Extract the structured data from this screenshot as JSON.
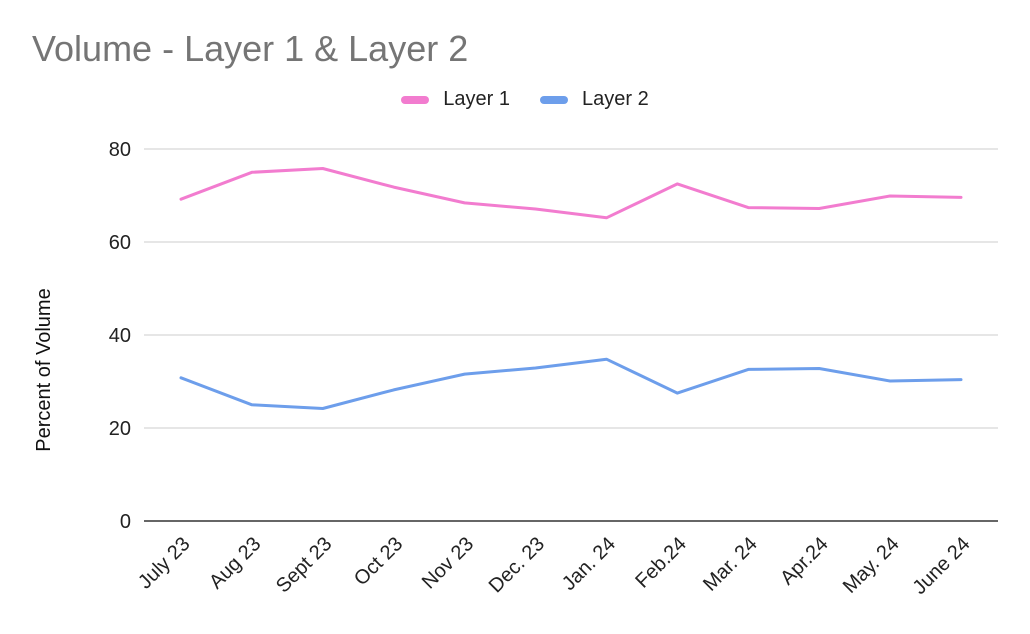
{
  "chart_data": {
    "type": "line",
    "title": "Volume - Layer 1 & Layer 2",
    "xlabel": "",
    "ylabel": "Percent of Volume",
    "ylim": [
      0,
      80
    ],
    "yticks": [
      0,
      20,
      40,
      60,
      80
    ],
    "grid": true,
    "legend_position": "top",
    "categories": [
      "July 23",
      "Aug 23",
      "Sept 23",
      "Oct 23",
      "Nov 23",
      "Dec. 23",
      "Jan. 24",
      "Feb.24",
      "Mar. 24",
      "Apr.24",
      "May. 24",
      "June 24"
    ],
    "series": [
      {
        "name": "Layer 1",
        "color": "#f27ccf",
        "values": [
          69.2,
          75.0,
          75.8,
          71.8,
          68.4,
          67.1,
          65.2,
          72.5,
          67.4,
          67.2,
          69.9,
          69.6
        ]
      },
      {
        "name": "Layer 2",
        "color": "#6d9eeb",
        "values": [
          30.8,
          25.0,
          24.2,
          28.2,
          31.6,
          32.9,
          34.8,
          27.5,
          32.6,
          32.8,
          30.1,
          30.4
        ]
      }
    ]
  }
}
